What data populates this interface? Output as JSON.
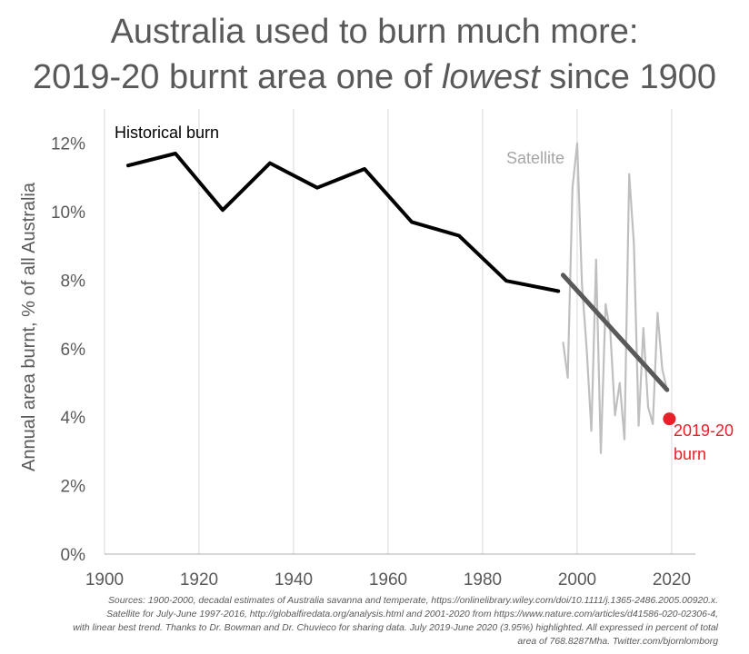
{
  "title": {
    "line1": "Australia used to burn much more:",
    "line2_pre": "2019-20 burnt area one of ",
    "line2_em": "lowest",
    "line2_post": " since 1900"
  },
  "chart_data": {
    "type": "line",
    "title": "Australia used to burn much more: 2019-20 burnt area one of lowest since 1900",
    "xlabel": "",
    "ylabel": "Annual area burnt, % of all Australia",
    "xlim": [
      1900,
      2025
    ],
    "ylim": [
      0,
      13
    ],
    "x_ticks": [
      1900,
      1920,
      1940,
      1960,
      1980,
      2000,
      2020
    ],
    "y_ticks": [
      0,
      2,
      4,
      6,
      8,
      10,
      12
    ],
    "y_tick_labels": [
      "0%",
      "2%",
      "4%",
      "6%",
      "8%",
      "10%",
      "12%"
    ],
    "grid": "vertical",
    "series": [
      {
        "name": "Historical burn",
        "color": "#000000",
        "x": [
          1905,
          1915,
          1925,
          1935,
          1945,
          1955,
          1965,
          1975,
          1985,
          1996
        ],
        "y": [
          11.35,
          11.7,
          10.05,
          11.42,
          10.7,
          11.25,
          9.7,
          9.3,
          7.98,
          7.68
        ]
      },
      {
        "name": "Satellite",
        "color": "#bfbfbf",
        "x": [
          1997,
          1998,
          1999,
          2000,
          2001,
          2002,
          2003,
          2004,
          2005,
          2006,
          2007,
          2008,
          2009,
          2010,
          2011,
          2012,
          2013,
          2014,
          2015,
          2016,
          2017,
          2018,
          2019
        ],
        "y": [
          6.2,
          5.15,
          10.7,
          12.0,
          7.9,
          6.0,
          3.6,
          8.6,
          2.95,
          7.3,
          6.5,
          4.05,
          5.0,
          3.35,
          11.1,
          9.05,
          3.75,
          6.6,
          4.3,
          3.8,
          7.05,
          5.4,
          4.8
        ]
      },
      {
        "name": "linear best trend",
        "color": "#595959",
        "x": [
          1997,
          2019
        ],
        "y": [
          8.15,
          4.8
        ]
      }
    ],
    "highlight": {
      "x": 2019.5,
      "y": 3.95,
      "color": "#e8202a",
      "label_line1": "2019-20",
      "label_line2": "burn"
    },
    "annotations": {
      "historical": "Historical burn",
      "satellite": "Satellite"
    }
  },
  "sources": [
    "Sources: 1900-2000, decadal estimates of Australia savanna and temperate, https://onlinelibrary.wiley.com/doi/10.1111/j.1365-2486.2005.00920.x.",
    "Satellite for July-June 1997-2016, http://globalfiredata.org/analysis.html and 2001-2020 from https://www.nature.com/articles/d41586-020-02306-4,",
    "with linear best trend. Thanks to Dr. Bowman and Dr. Chuvieco for sharing data. July 2019-June 2020 (3.95%) highlighted. All expressed in percent of total",
    "area of 768.8287Mha. Twitter.com/bjornlomborg"
  ]
}
